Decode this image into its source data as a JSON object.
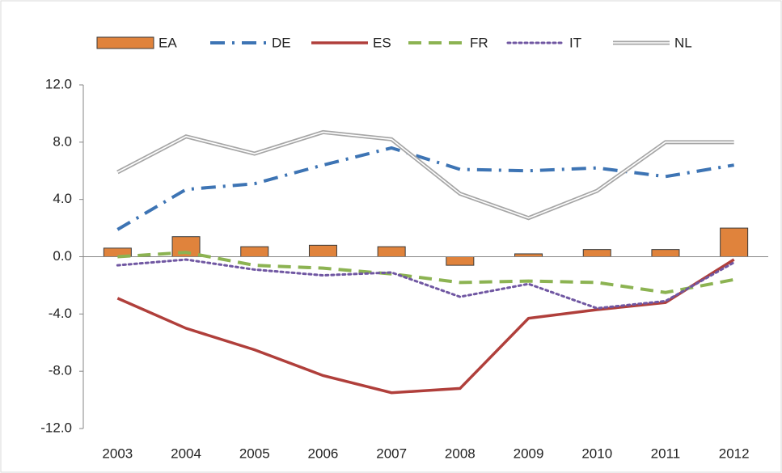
{
  "chart_data": {
    "type": "combo",
    "categories": [
      "2003",
      "2004",
      "2005",
      "2006",
      "2007",
      "2008",
      "2009",
      "2010",
      "2011",
      "2012"
    ],
    "ylim": [
      -12,
      12
    ],
    "yticks": [
      {
        "value": -12,
        "label": "-12.0"
      },
      {
        "value": -8,
        "label": "-8.0"
      },
      {
        "value": -4,
        "label": "-4.0"
      },
      {
        "value": 0,
        "label": "0.0"
      },
      {
        "value": 4,
        "label": "4.0"
      },
      {
        "value": 8,
        "label": "8.0"
      },
      {
        "value": 12,
        "label": "12.0"
      }
    ],
    "grid": false,
    "legend": "top",
    "series": [
      {
        "name": "EA",
        "type": "bar",
        "style": "solid",
        "color": "#e0833c",
        "values": [
          0.6,
          1.4,
          0.7,
          0.8,
          0.7,
          -0.6,
          0.2,
          0.5,
          0.5,
          2.0
        ]
      },
      {
        "name": "DE",
        "type": "line",
        "style": "dash-dot",
        "color": "#3d74b4",
        "values": [
          1.9,
          4.7,
          5.1,
          6.4,
          7.6,
          6.1,
          6.0,
          6.2,
          5.6,
          6.4
        ]
      },
      {
        "name": "ES",
        "type": "line",
        "style": "solid",
        "color": "#b03f3b",
        "values": [
          -2.9,
          -5.0,
          -6.5,
          -8.3,
          -9.5,
          -9.2,
          -4.3,
          -3.7,
          -3.2,
          -0.2
        ]
      },
      {
        "name": "FR",
        "type": "line",
        "style": "dashed",
        "color": "#8cb352",
        "values": [
          0.0,
          0.3,
          -0.6,
          -0.8,
          -1.2,
          -1.8,
          -1.7,
          -1.8,
          -2.5,
          -1.6
        ]
      },
      {
        "name": "IT",
        "type": "line",
        "style": "dotted",
        "color": "#7057a2",
        "values": [
          -0.6,
          -0.2,
          -0.9,
          -1.3,
          -1.1,
          -2.8,
          -1.9,
          -3.6,
          -3.1,
          -0.4
        ]
      },
      {
        "name": "NL",
        "type": "line",
        "style": "double",
        "color": "#a6a6a6",
        "values": [
          5.9,
          8.4,
          7.2,
          8.7,
          8.2,
          4.4,
          2.7,
          4.6,
          8.0,
          8.0
        ]
      }
    ]
  }
}
